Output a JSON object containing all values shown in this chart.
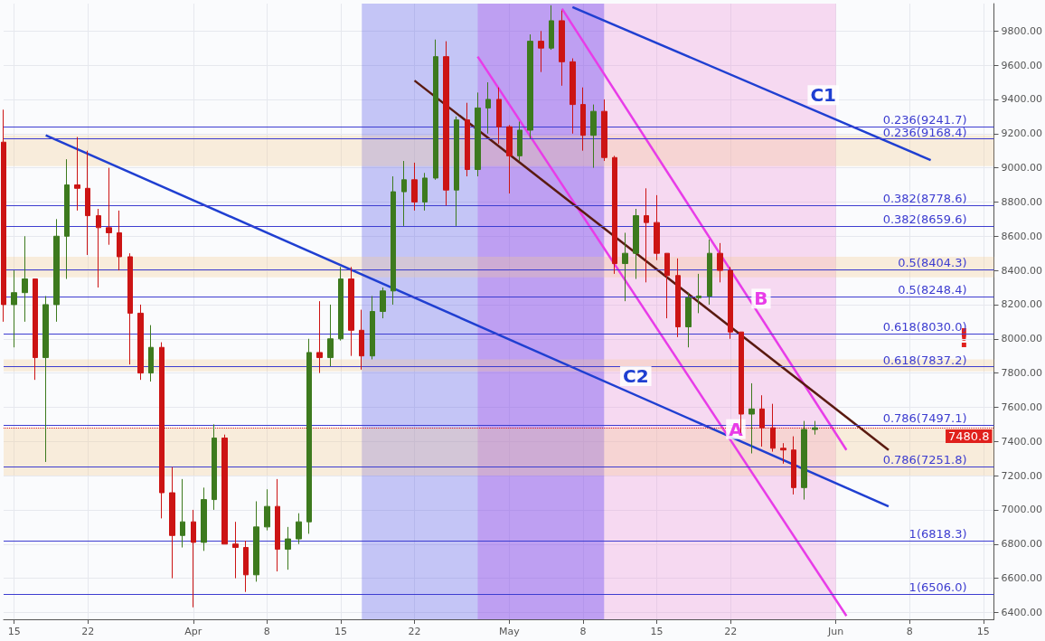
{
  "chart_data": {
    "type": "candlestick",
    "x": [
      "--03-14",
      "--03-15",
      "--03-16",
      "--03-17",
      "--03-18",
      "--03-19",
      "--03-20",
      "--03-21",
      "--03-22",
      "--03-23",
      "--03-24",
      "--03-25",
      "--03-26",
      "--03-27",
      "--03-28",
      "--03-29",
      "--03-30",
      "--03-31",
      "--04-01",
      "--04-02",
      "--04-03",
      "--04-04",
      "--04-05",
      "--04-06",
      "--04-07",
      "--04-08",
      "--04-09",
      "--04-10",
      "--04-11",
      "--04-12",
      "--04-13",
      "--04-14",
      "--04-15",
      "--04-16",
      "--04-17",
      "--04-18",
      "--04-19",
      "--04-20",
      "--04-21",
      "--04-22",
      "--04-23",
      "--04-24",
      "--04-25",
      "--04-26",
      "--04-27",
      "--04-28",
      "--04-29",
      "--04-30",
      "--05-01",
      "--05-02",
      "--05-03",
      "--05-04",
      "--05-05",
      "--05-06",
      "--05-07",
      "--05-08",
      "--05-09",
      "--05-10",
      "--05-11",
      "--05-12",
      "--05-13",
      "--05-14",
      "--05-15",
      "--05-16",
      "--05-17",
      "--05-18",
      "--05-19",
      "--05-20",
      "--05-21",
      "--05-22",
      "--05-23",
      "--05-24",
      "--05-25",
      "--05-26",
      "--05-27",
      "--05-28",
      "--05-29",
      "--05-30"
    ],
    "ohlc": [
      [
        9150,
        9340,
        8100,
        8200
      ],
      [
        8200,
        8400,
        7950,
        8270
      ],
      [
        8270,
        8600,
        8100,
        8350
      ],
      [
        8350,
        8350,
        7760,
        7890
      ],
      [
        7890,
        8250,
        7280,
        8200
      ],
      [
        8200,
        8700,
        8100,
        8600
      ],
      [
        8600,
        9050,
        8350,
        8900
      ],
      [
        8900,
        9180,
        8750,
        8880
      ],
      [
        8880,
        9100,
        8490,
        8720
      ],
      [
        8720,
        8760,
        8300,
        8650
      ],
      [
        8650,
        9000,
        8550,
        8620
      ],
      [
        8620,
        8750,
        8400,
        8480
      ],
      [
        8480,
        8500,
        7850,
        8150
      ],
      [
        8150,
        8200,
        7760,
        7800
      ],
      [
        7800,
        8080,
        7750,
        7950
      ],
      [
        7950,
        7980,
        6950,
        7100
      ],
      [
        7100,
        7250,
        6600,
        6850
      ],
      [
        6850,
        7180,
        6780,
        6930
      ],
      [
        6930,
        7000,
        6430,
        6810
      ],
      [
        6810,
        7130,
        6760,
        7060
      ],
      [
        7060,
        7500,
        7000,
        7420
      ],
      [
        7420,
        7440,
        6800,
        6800
      ],
      [
        6800,
        6930,
        6600,
        6780
      ],
      [
        6780,
        6820,
        6520,
        6620
      ],
      [
        6620,
        7050,
        6580,
        6900
      ],
      [
        6900,
        7120,
        6880,
        7020
      ],
      [
        7020,
        7180,
        6640,
        6770
      ],
      [
        6770,
        6900,
        6650,
        6830
      ],
      [
        6830,
        6980,
        6800,
        6930
      ],
      [
        6930,
        8000,
        6860,
        7920
      ],
      [
        7920,
        8220,
        7800,
        7890
      ],
      [
        7890,
        8200,
        7840,
        8000
      ],
      [
        8000,
        8420,
        7990,
        8350
      ],
      [
        8350,
        8420,
        7900,
        8050
      ],
      [
        8050,
        8170,
        7820,
        7900
      ],
      [
        7900,
        8250,
        7880,
        8160
      ],
      [
        8160,
        8300,
        8120,
        8280
      ],
      [
        8280,
        8950,
        8200,
        8860
      ],
      [
        8860,
        9040,
        8660,
        8930
      ],
      [
        8930,
        9030,
        8750,
        8800
      ],
      [
        8800,
        8970,
        8750,
        8940
      ],
      [
        8940,
        9750,
        8930,
        9650
      ],
      [
        9650,
        9740,
        8780,
        8870
      ],
      [
        8870,
        9300,
        8660,
        9280
      ],
      [
        9280,
        9380,
        8950,
        8990
      ],
      [
        8990,
        9440,
        8950,
        9350
      ],
      [
        9350,
        9500,
        9200,
        9400
      ],
      [
        9400,
        9470,
        9140,
        9240
      ],
      [
        9240,
        9250,
        8850,
        9070
      ],
      [
        9070,
        9270,
        9040,
        9220
      ],
      [
        9220,
        9780,
        9170,
        9740
      ],
      [
        9740,
        9800,
        9560,
        9700
      ],
      [
        9700,
        9950,
        9690,
        9860
      ],
      [
        9860,
        9920,
        9480,
        9620
      ],
      [
        9620,
        9640,
        9200,
        9370
      ],
      [
        9370,
        9470,
        9100,
        9190
      ],
      [
        9190,
        9370,
        9000,
        9330
      ],
      [
        9330,
        9400,
        9040,
        9060
      ],
      [
        9060,
        9070,
        8380,
        8440
      ],
      [
        8440,
        8620,
        8220,
        8500
      ],
      [
        8500,
        8760,
        8350,
        8720
      ],
      [
        8720,
        8880,
        8330,
        8680
      ],
      [
        8680,
        8840,
        8460,
        8500
      ],
      [
        8500,
        8500,
        8120,
        8370
      ],
      [
        8370,
        8470,
        8010,
        8070
      ],
      [
        8070,
        8270,
        7950,
        8240
      ],
      [
        8240,
        8380,
        8150,
        8250
      ],
      [
        8250,
        8580,
        8200,
        8500
      ],
      [
        8500,
        8560,
        8330,
        8400
      ],
      [
        8400,
        8420,
        8000,
        8040
      ],
      [
        8040,
        8040,
        7450,
        7560
      ],
      [
        7560,
        7740,
        7330,
        7590
      ],
      [
        7590,
        7670,
        7370,
        7480
      ],
      [
        7480,
        7620,
        7340,
        7360
      ],
      [
        7360,
        7390,
        7270,
        7350
      ],
      [
        7350,
        7430,
        7090,
        7130
      ],
      [
        7130,
        7520,
        7060,
        7470
      ],
      [
        7470,
        7520,
        7440,
        7480
      ]
    ],
    "series": [
      {
        "type": "line",
        "name": "C1",
        "color": "#1f3fd1",
        "x": [
          "--05-07",
          "--06-10"
        ],
        "values": [
          9940,
          9045
        ]
      },
      {
        "type": "line",
        "name": "C2",
        "color": "#1f3fd1",
        "x": [
          "--03-18",
          "--06-06"
        ],
        "values": [
          9190,
          7020
        ]
      },
      {
        "type": "line",
        "name": "B",
        "color": "#e83ce8",
        "x": [
          "--05-06",
          "--06-02"
        ],
        "values": [
          9930,
          7350
        ]
      },
      {
        "type": "line",
        "name": "A",
        "color": "#e83ce8",
        "x": [
          "--04-28",
          "--06-02"
        ],
        "values": [
          9650,
          6380
        ]
      },
      {
        "type": "line",
        "color": "#5a1a10",
        "x": [
          "--04-22",
          "--06-06"
        ],
        "values": [
          9510,
          7350
        ]
      }
    ],
    "xlim": [
      "--03-14",
      "--06-16"
    ],
    "xticks": [
      {
        "value": "--03-15",
        "label": "15"
      },
      {
        "value": "--03-22",
        "label": "22"
      },
      {
        "value": "--04-01",
        "label": "Apr"
      },
      {
        "value": "--04-08",
        "label": "8"
      },
      {
        "value": "--04-15",
        "label": "15"
      },
      {
        "value": "--04-22",
        "label": "22"
      },
      {
        "value": "--05-01",
        "label": "May"
      },
      {
        "value": "--05-08",
        "label": "8"
      },
      {
        "value": "--05-15",
        "label": "15"
      },
      {
        "value": "--05-22",
        "label": "22"
      },
      {
        "value": "--06-01",
        "label": "Jun"
      },
      {
        "value": "--06-08",
        "label": "8"
      },
      {
        "value": "--06-15",
        "label": "15"
      }
    ],
    "ylim": [
      6360,
      9960
    ],
    "yticks": [
      {
        "value": 6400,
        "label": "6400.00"
      },
      {
        "value": 6600,
        "label": "6600.00"
      },
      {
        "value": 6800,
        "label": "6800.00"
      },
      {
        "value": 7000,
        "label": "7000.00"
      },
      {
        "value": 7200,
        "label": "7200.00"
      },
      {
        "value": 7400,
        "label": "7400.00"
      },
      {
        "value": 7600,
        "label": "7600.00"
      },
      {
        "value": 7800,
        "label": "7800.00"
      },
      {
        "value": 8000,
        "label": "8000.00"
      },
      {
        "value": 8200,
        "label": "8200.00"
      },
      {
        "value": 8400,
        "label": "8400.00"
      },
      {
        "value": 8600,
        "label": "8600.00"
      },
      {
        "value": 8800,
        "label": "8800.00"
      },
      {
        "value": 9000,
        "label": "9000.00"
      },
      {
        "value": 9200,
        "label": "9200.00"
      },
      {
        "value": 9400,
        "label": "9400.00"
      },
      {
        "value": 9600,
        "label": "9600.00"
      },
      {
        "value": 9800,
        "label": "9800.00"
      }
    ],
    "ref_lines": [
      {
        "axis": "y",
        "value": 9241.7,
        "label": "0.236(9241.7)",
        "color": "#3d3dd0"
      },
      {
        "axis": "y",
        "value": 9168.4,
        "label": "0.236(9168.4)",
        "color": "#3d3dd0"
      },
      {
        "axis": "y",
        "value": 8778.6,
        "label": "0.382(8778.6)",
        "color": "#3d3dd0"
      },
      {
        "axis": "y",
        "value": 8659.6,
        "label": "0.382(8659.6)",
        "color": "#3d3dd0"
      },
      {
        "axis": "y",
        "value": 8404.3,
        "label": "0.5(8404.3)",
        "color": "#3d3dd0"
      },
      {
        "axis": "y",
        "value": 8248.4,
        "label": "0.5(8248.4)",
        "color": "#3d3dd0"
      },
      {
        "axis": "y",
        "value": 8030.0,
        "label": "0.618(8030.0)",
        "color": "#3d3dd0"
      },
      {
        "axis": "y",
        "value": 7837.2,
        "label": "0.618(7837.2)",
        "color": "#3d3dd0"
      },
      {
        "axis": "y",
        "value": 7497.1,
        "label": "0.786(7497.1)",
        "color": "#3d3dd0"
      },
      {
        "axis": "y",
        "value": 7251.8,
        "label": "0.786(7251.8)",
        "color": "#3d3dd0"
      },
      {
        "axis": "y",
        "value": 6818.3,
        "label": "1(6818.3)",
        "color": "#3d3dd0"
      },
      {
        "axis": "y",
        "value": 6506.0,
        "label": "1(6506.0)",
        "color": "#3d3dd0"
      },
      {
        "axis": "y",
        "value": 7480.8,
        "label": "7480.8",
        "color": "#e0201c",
        "line_style": "dotted"
      }
    ],
    "bands": [
      {
        "axis": "x",
        "from": "--04-17",
        "to": "--05-10",
        "color": "#4a4ae8"
      },
      {
        "axis": "x",
        "from": "--04-28",
        "to": "--05-10",
        "color": "#b04ae8"
      },
      {
        "axis": "x",
        "from": "--05-10",
        "to": "--06-01",
        "color": "#f08ad8"
      },
      {
        "axis": "y",
        "from": 8360,
        "to": 8480,
        "color": "#f5c98e"
      },
      {
        "axis": "y",
        "from": 7200,
        "to": 7480,
        "color": "#f5c98e"
      },
      {
        "axis": "y",
        "from": 9010,
        "to": 9190,
        "color": "#f5c98e"
      },
      {
        "axis": "y",
        "from": 7810,
        "to": 7880,
        "color": "#f5c98e"
      }
    ],
    "annotations": [
      "!"
    ],
    "grid": true,
    "legend": false
  }
}
